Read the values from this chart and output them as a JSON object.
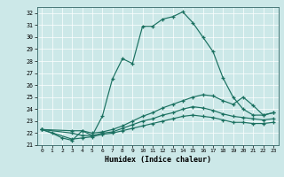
{
  "xlabel": "Humidex (Indice chaleur)",
  "bg_color": "#cce8e8",
  "line_color": "#1a7060",
  "xlim": [
    -0.5,
    23.5
  ],
  "ylim": [
    21,
    32.5
  ],
  "yticks": [
    21,
    22,
    23,
    24,
    25,
    26,
    27,
    28,
    29,
    30,
    31,
    32
  ],
  "xticks": [
    0,
    1,
    2,
    3,
    4,
    5,
    6,
    7,
    8,
    9,
    10,
    11,
    12,
    13,
    14,
    15,
    16,
    17,
    18,
    19,
    20,
    21,
    22,
    23
  ],
  "line1_x": [
    0,
    1,
    2,
    3,
    4,
    5,
    6,
    7,
    8,
    9,
    10,
    11,
    12,
    13,
    14,
    15,
    16,
    17,
    18,
    19,
    20,
    21,
    22,
    23
  ],
  "line1_y": [
    22.3,
    22.0,
    21.6,
    21.4,
    22.2,
    21.8,
    23.4,
    26.5,
    28.2,
    27.8,
    30.9,
    30.9,
    31.5,
    31.7,
    32.1,
    31.2,
    30.0,
    28.8,
    26.6,
    25.0,
    24.0,
    23.5,
    23.5,
    23.7
  ],
  "line2_x": [
    0,
    3,
    4,
    5,
    6,
    7,
    8,
    9,
    10,
    11,
    12,
    13,
    14,
    15,
    16,
    17,
    18,
    19,
    20,
    21,
    22,
    23
  ],
  "line2_y": [
    22.3,
    22.2,
    22.2,
    22.0,
    22.1,
    22.3,
    22.6,
    23.0,
    23.4,
    23.7,
    24.1,
    24.4,
    24.7,
    25.0,
    25.2,
    25.1,
    24.7,
    24.4,
    25.0,
    24.3,
    23.5,
    23.7
  ],
  "line3_x": [
    0,
    3,
    4,
    5,
    6,
    7,
    8,
    9,
    10,
    11,
    12,
    13,
    14,
    15,
    16,
    17,
    18,
    19,
    20,
    21,
    22,
    23
  ],
  "line3_y": [
    22.3,
    22.0,
    21.8,
    21.8,
    22.0,
    22.1,
    22.4,
    22.7,
    23.0,
    23.2,
    23.5,
    23.7,
    24.0,
    24.2,
    24.1,
    23.9,
    23.6,
    23.4,
    23.3,
    23.2,
    23.1,
    23.2
  ],
  "line4_x": [
    0,
    3,
    4,
    5,
    6,
    7,
    8,
    9,
    10,
    11,
    12,
    13,
    14,
    15,
    16,
    17,
    18,
    19,
    20,
    21,
    22,
    23
  ],
  "line4_y": [
    22.3,
    21.5,
    21.6,
    21.7,
    21.9,
    22.0,
    22.2,
    22.4,
    22.6,
    22.8,
    23.0,
    23.2,
    23.4,
    23.5,
    23.4,
    23.3,
    23.1,
    22.9,
    22.9,
    22.8,
    22.8,
    22.9
  ]
}
